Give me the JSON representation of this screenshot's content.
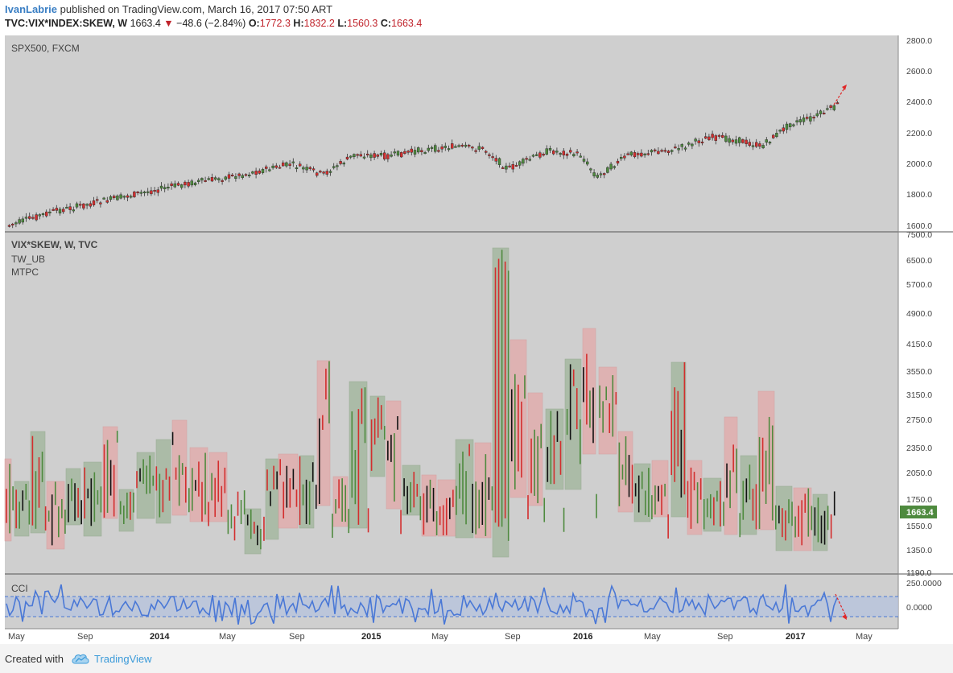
{
  "header": {
    "author": "IvanLabrie",
    "published_text": " published on TradingView.com, March 16, 2017 07:50 ART",
    "symbol": "TVC:VIX*INDEX:SKEW, W",
    "last": "1663.4",
    "change": "−48.6 (−2.84%)",
    "open_label": "O:",
    "open": "1772.3",
    "high_label": "H:",
    "high": "1832.2",
    "low_label": "L:",
    "low": "1560.3",
    "close_label": "C:",
    "close": "1663.4"
  },
  "panes": {
    "spx": {
      "label": "SPX500, FXCM",
      "ticks": [
        "2800.0",
        "2600.0",
        "2400.0",
        "2200.0",
        "2000.0",
        "1800.0",
        "1600.0"
      ]
    },
    "skew": {
      "labels": [
        "VIX*SKEW, W, TVC",
        "TW_UB",
        "MTPC"
      ],
      "ticks": [
        "7500.0",
        "6500.0",
        "5700.0",
        "4900.0",
        "4150.0",
        "3550.0",
        "3150.0",
        "2750.0",
        "2350.0",
        "2050.0",
        "1750.0",
        "1550.0",
        "1350.0",
        "1190.0"
      ],
      "last_badge": "1663.4"
    },
    "cci": {
      "label": "CCI",
      "ticks": [
        "250.0000",
        "0.0000"
      ]
    }
  },
  "xaxis": {
    "labels": [
      {
        "text": "May",
        "bold": false
      },
      {
        "text": "Sep",
        "bold": false
      },
      {
        "text": "2014",
        "bold": true
      },
      {
        "text": "May",
        "bold": false
      },
      {
        "text": "Sep",
        "bold": false
      },
      {
        "text": "2015",
        "bold": true
      },
      {
        "text": "May",
        "bold": false
      },
      {
        "text": "Sep",
        "bold": false
      },
      {
        "text": "2016",
        "bold": true
      },
      {
        "text": "May",
        "bold": false
      },
      {
        "text": "Sep",
        "bold": false
      },
      {
        "text": "2017",
        "bold": true
      },
      {
        "text": "May",
        "bold": false
      }
    ]
  },
  "footer": {
    "created_with": "Created with",
    "brand": "TradingView"
  },
  "colors": {
    "up": "#4e8a3e",
    "down": "#d32e2e",
    "cci_line": "#4a78d6",
    "cci_band": "#b9c4dc",
    "pane_bg": "#cfcfcf",
    "badge": "#4e8a3e"
  }
}
